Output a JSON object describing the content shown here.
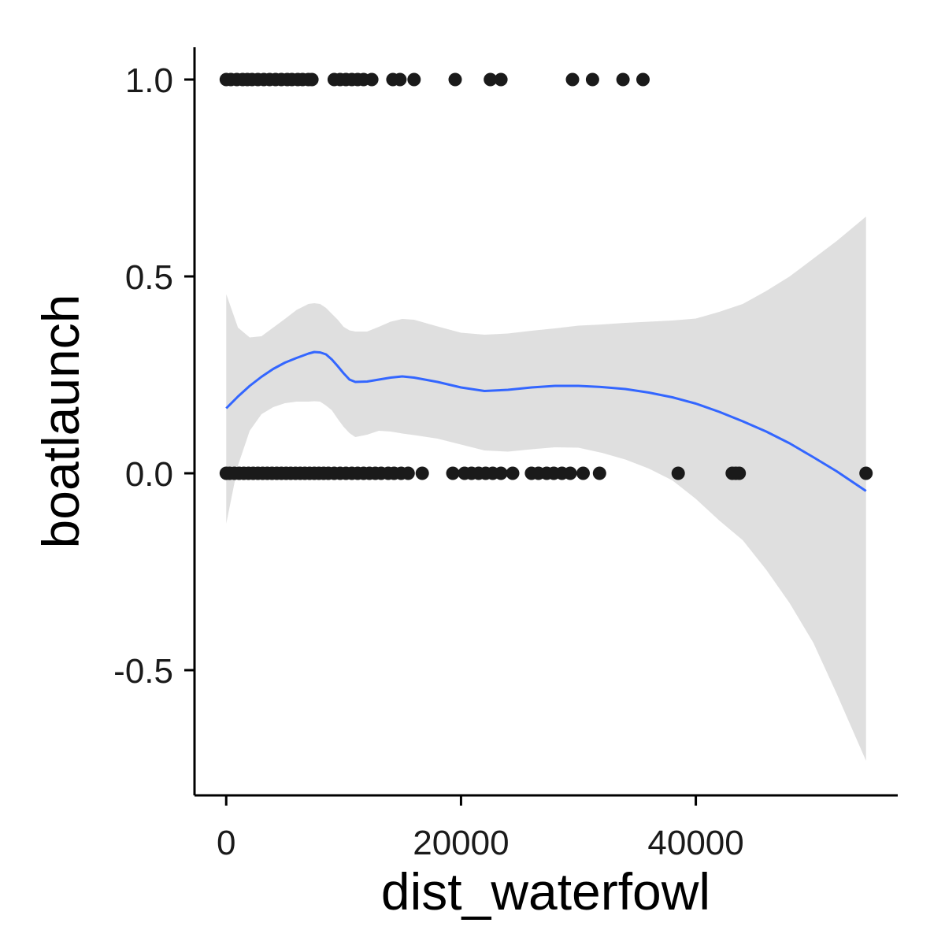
{
  "chart_data": {
    "type": "scatter",
    "xlabel": "dist_waterfowl",
    "ylabel": "boatlaunch",
    "xlim": [
      -2700,
      57200
    ],
    "ylim": [
      -0.818,
      1.082
    ],
    "x_ticks": [
      {
        "value": 0,
        "label": "0"
      },
      {
        "value": 20000,
        "label": "20000"
      },
      {
        "value": 40000,
        "label": "40000"
      }
    ],
    "y_ticks": [
      {
        "value": -0.5,
        "label": "-0.5"
      },
      {
        "value": 0.0,
        "label": "0.0"
      },
      {
        "value": 0.5,
        "label": "0.5"
      },
      {
        "value": 1.0,
        "label": "1.0"
      }
    ],
    "grid": false,
    "legend": "none",
    "colors": {
      "points": "#1a1a1a",
      "smooth_line": "#3366ff",
      "ribbon": "#d9d9d9",
      "axis": "#000000"
    },
    "series": [
      {
        "kind": "points",
        "y": 1,
        "x": [
          0,
          400,
          900,
          1400,
          1800,
          2200,
          2700,
          3200,
          3700,
          4200,
          4700,
          5200,
          5600,
          6100,
          6500,
          7000,
          7300,
          9200,
          9700,
          10200,
          10700,
          11200,
          11700,
          12400,
          14200,
          14800,
          16000,
          19500,
          22500,
          23400,
          29500,
          31200,
          33800,
          35500
        ]
      },
      {
        "kind": "points",
        "y": 0,
        "x": [
          0,
          300,
          700,
          1100,
          1500,
          1900,
          2300,
          2700,
          3100,
          3500,
          3900,
          4300,
          4700,
          5100,
          5500,
          5900,
          6300,
          6700,
          7100,
          7500,
          7900,
          8300,
          8700,
          9200,
          9700,
          10200,
          10700,
          11200,
          11700,
          12200,
          12700,
          13200,
          13800,
          14300,
          14900,
          15500,
          16700,
          19300,
          20300,
          20900,
          21500,
          22100,
          22700,
          23400,
          24400,
          26000,
          26600,
          27300,
          27900,
          28600,
          29300,
          30400,
          31800,
          38500,
          43100,
          43400,
          43700,
          54500
        ]
      },
      {
        "kind": "smooth",
        "x": [
          0,
          1000,
          2000,
          3000,
          4000,
          5000,
          6000,
          7000,
          7500,
          8000,
          8500,
          9000,
          9500,
          10000,
          10500,
          11000,
          12000,
          13000,
          14000,
          15000,
          16000,
          18000,
          20000,
          22000,
          24000,
          26000,
          28000,
          30000,
          32000,
          34000,
          36000,
          38000,
          40000,
          42000,
          44000,
          46000,
          48000,
          50000,
          52000,
          54500
        ],
        "y": [
          0.165,
          0.195,
          0.222,
          0.245,
          0.265,
          0.281,
          0.293,
          0.304,
          0.308,
          0.307,
          0.302,
          0.289,
          0.272,
          0.254,
          0.238,
          0.232,
          0.233,
          0.238,
          0.243,
          0.246,
          0.243,
          0.232,
          0.218,
          0.209,
          0.212,
          0.218,
          0.222,
          0.222,
          0.219,
          0.214,
          0.205,
          0.193,
          0.177,
          0.156,
          0.132,
          0.106,
          0.076,
          0.041,
          0.005,
          -0.045
        ]
      },
      {
        "kind": "ribbon",
        "x": [
          0,
          1000,
          2000,
          3000,
          4000,
          5000,
          6000,
          7000,
          7500,
          8000,
          8500,
          9000,
          9500,
          10000,
          10500,
          11000,
          12000,
          13000,
          14000,
          15000,
          16000,
          18000,
          20000,
          22000,
          24000,
          26000,
          28000,
          30000,
          32000,
          34000,
          36000,
          38000,
          40000,
          42000,
          44000,
          46000,
          48000,
          50000,
          52000,
          54500
        ],
        "y_upper": [
          0.455,
          0.37,
          0.345,
          0.348,
          0.37,
          0.392,
          0.415,
          0.43,
          0.432,
          0.43,
          0.42,
          0.405,
          0.39,
          0.372,
          0.363,
          0.36,
          0.36,
          0.372,
          0.385,
          0.392,
          0.39,
          0.373,
          0.357,
          0.352,
          0.355,
          0.362,
          0.368,
          0.375,
          0.378,
          0.382,
          0.385,
          0.388,
          0.393,
          0.41,
          0.43,
          0.463,
          0.5,
          0.545,
          0.59,
          0.652
        ],
        "y_lower": [
          -0.128,
          0.02,
          0.108,
          0.15,
          0.168,
          0.178,
          0.182,
          0.182,
          0.183,
          0.182,
          0.172,
          0.16,
          0.138,
          0.118,
          0.102,
          0.092,
          0.098,
          0.108,
          0.106,
          0.101,
          0.097,
          0.088,
          0.073,
          0.058,
          0.055,
          0.061,
          0.066,
          0.065,
          0.052,
          0.035,
          0.012,
          -0.018,
          -0.065,
          -0.12,
          -0.17,
          -0.245,
          -0.33,
          -0.43,
          -0.56,
          -0.73
        ]
      }
    ]
  }
}
